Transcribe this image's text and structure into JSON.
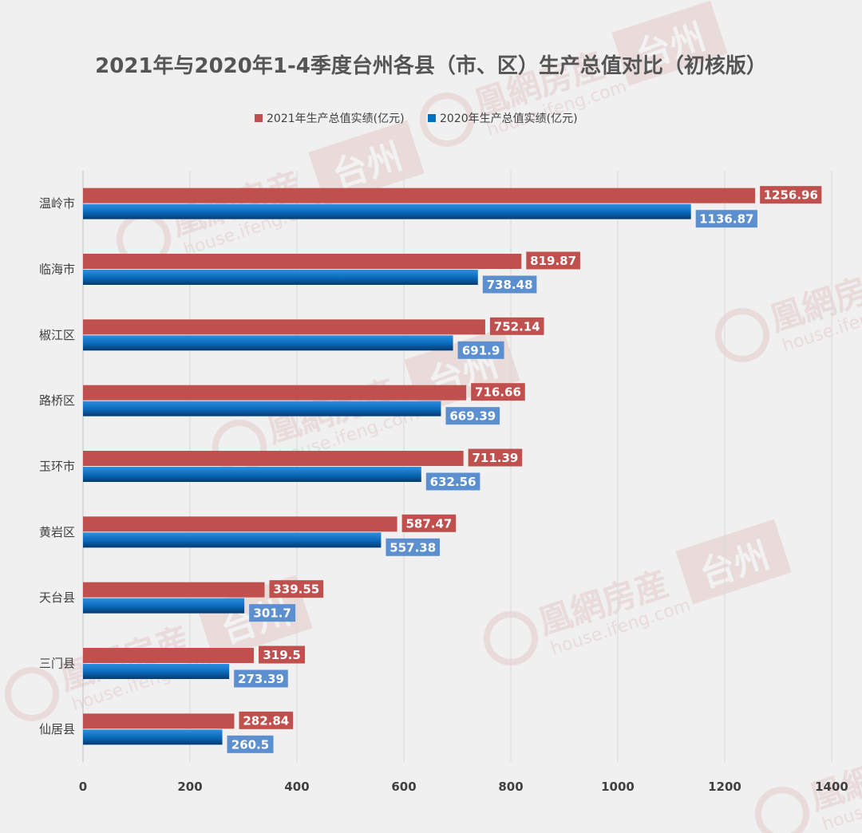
{
  "chart_data": {
    "type": "bar",
    "orientation": "horizontal",
    "title": "2021年与2020年1-4季度台州各县（市、区）生产总值对比（初核版）",
    "categories": [
      "温岭市",
      "临海市",
      "椒江区",
      "路桥区",
      "玉环市",
      "黄岩区",
      "天台县",
      "三门县",
      "仙居县"
    ],
    "series": [
      {
        "name": "2021年生产总值实绩(亿元)",
        "color": "#c0504d",
        "label_color": "#c0504d",
        "values": [
          1256.96,
          819.87,
          752.14,
          716.66,
          711.39,
          587.47,
          339.55,
          319.5,
          282.84
        ],
        "labels": [
          "1256.96",
          "819.87",
          "752.14",
          "716.66",
          "711.39",
          "587.47",
          "339.55",
          "319.5",
          "282.84"
        ]
      },
      {
        "name": "2020年生产总值实绩(亿元)",
        "color": "#0070c0",
        "label_color": "#5b8fd0",
        "values": [
          1136.87,
          738.48,
          691.9,
          669.39,
          632.56,
          557.38,
          301.7,
          273.39,
          260.5
        ],
        "labels": [
          "1136.87",
          "738.48",
          "691.9",
          "669.39",
          "632.56",
          "557.38",
          "301.7",
          "273.39",
          "260.5"
        ]
      }
    ],
    "xlim": [
      0,
      1400
    ],
    "xticks": [
      "0",
      "200",
      "400",
      "600",
      "800",
      "1000",
      "1200",
      "1400"
    ],
    "grid": true,
    "legend_position": "top"
  },
  "watermark": {
    "brand": "凰網房産",
    "domain": "house.ifeng.com",
    "city": "台州"
  }
}
